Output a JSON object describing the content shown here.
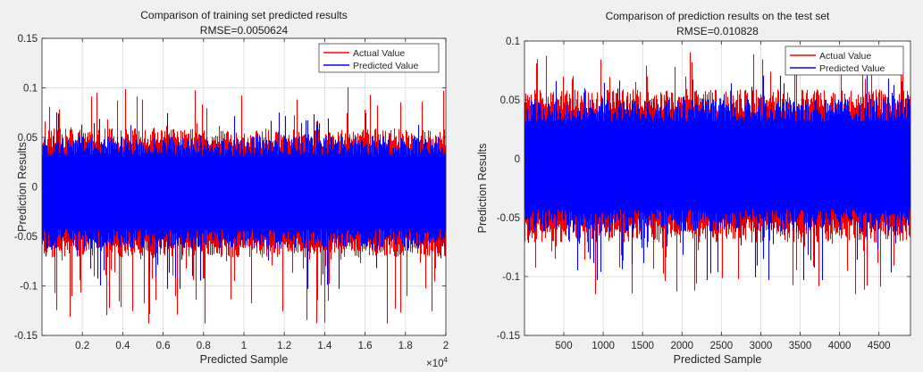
{
  "chart_data": [
    {
      "type": "line",
      "title": "Comparison of training set predicted results",
      "subtitle": "RMSE=0.0050624",
      "xlabel": "Predicted Sample",
      "ylabel": "Prediction Results",
      "x_exponent_label": "×10",
      "x_exponent_power": "4",
      "xlim": [
        1,
        20000
      ],
      "ylim": [
        -0.15,
        0.15
      ],
      "xticks": [
        2000,
        4000,
        6000,
        8000,
        10000,
        12000,
        14000,
        16000,
        18000,
        20000
      ],
      "xtick_labels": [
        "0.2",
        "0.4",
        "0.6",
        "0.8",
        "1",
        "1.2",
        "1.4",
        "1.6",
        "1.8",
        "2"
      ],
      "yticks": [
        -0.15,
        -0.1,
        -0.05,
        0,
        0.05,
        0.1,
        0.15
      ],
      "ytick_labels": [
        "-0.15",
        "-0.1",
        "-0.05",
        "0",
        "0.05",
        "0.1",
        "0.15"
      ],
      "grid": true,
      "legend_position": "top-right",
      "series": [
        {
          "name": "Actual Value",
          "color": "#ff0000",
          "approx_range": [
            -0.135,
            0.105
          ]
        },
        {
          "name": "Predicted Value",
          "color": "#0000ff",
          "approx_range": [
            -0.1,
            0.08
          ]
        }
      ]
    },
    {
      "type": "line",
      "title": "Comparison of prediction results on the test set",
      "subtitle": "RMSE=0.010828",
      "xlabel": "Predicted Sample",
      "ylabel": "Prediction Results",
      "xlim": [
        1,
        4900
      ],
      "ylim": [
        -0.15,
        0.1
      ],
      "xticks": [
        500,
        1000,
        1500,
        2000,
        2500,
        3000,
        3500,
        4000,
        4500
      ],
      "xtick_labels": [
        "500",
        "1000",
        "1500",
        "2000",
        "2500",
        "3000",
        "3500",
        "4000",
        "4500"
      ],
      "yticks": [
        -0.15,
        -0.1,
        -0.05,
        0,
        0.05,
        0.1
      ],
      "ytick_labels": [
        "-0.15",
        "-0.1",
        "-0.05",
        "0",
        "0.05",
        "0.1"
      ],
      "grid": true,
      "legend_position": "top-right",
      "series": [
        {
          "name": "Actual Value",
          "color": "#ff0000",
          "approx_range": [
            -0.112,
            0.094
          ]
        },
        {
          "name": "Predicted Value",
          "color": "#0000ff",
          "approx_range": [
            -0.1,
            0.075
          ]
        }
      ]
    }
  ]
}
